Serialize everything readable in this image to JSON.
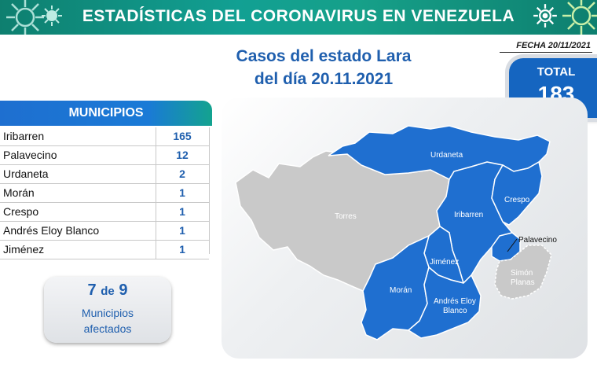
{
  "header": {
    "title": "ESTADÍSTICAS DEL CORONAVIRUS EN VENEZUELA"
  },
  "date": "FECHA 20/11/2021",
  "cases_title": {
    "line1": "Casos del estado Lara",
    "line2": "del día 20.11.2021"
  },
  "total": {
    "label": "TOTAL",
    "value": "183"
  },
  "municipios": {
    "header": "MUNICIPIOS",
    "rows": [
      {
        "name": "Iribarren",
        "value": "165"
      },
      {
        "name": "Palavecino",
        "value": "12"
      },
      {
        "name": "Urdaneta",
        "value": "2"
      },
      {
        "name": "Morán",
        "value": "1"
      },
      {
        "name": "Crespo",
        "value": "1"
      },
      {
        "name": "Andrés Eloy Blanco",
        "value": "1"
      },
      {
        "name": "Jiménez",
        "value": "1"
      }
    ]
  },
  "affected": {
    "count": "7",
    "de": "de",
    "total": "9",
    "line1": "Municipios",
    "line2": "afectados"
  },
  "map": {
    "labels": {
      "urdaneta": "Urdaneta",
      "torres": "Torres",
      "iribarren": "Iribarren",
      "crespo": "Crespo",
      "palavecino": "Palavecino",
      "jimenez": "Jiménez",
      "moran": "Morán",
      "aeb_1": "Andrés Eloy",
      "aeb_2": "Blanco",
      "simon_1": "Simón",
      "simon_2": "Planas"
    },
    "colors": {
      "affected": "#1f6fd0",
      "unaffected": "#c9c9c9",
      "border": "#ffffff"
    }
  },
  "colors": {
    "header": "#12a093",
    "brand_blue": "#1f5fae",
    "total_bg": "#1565c0"
  }
}
